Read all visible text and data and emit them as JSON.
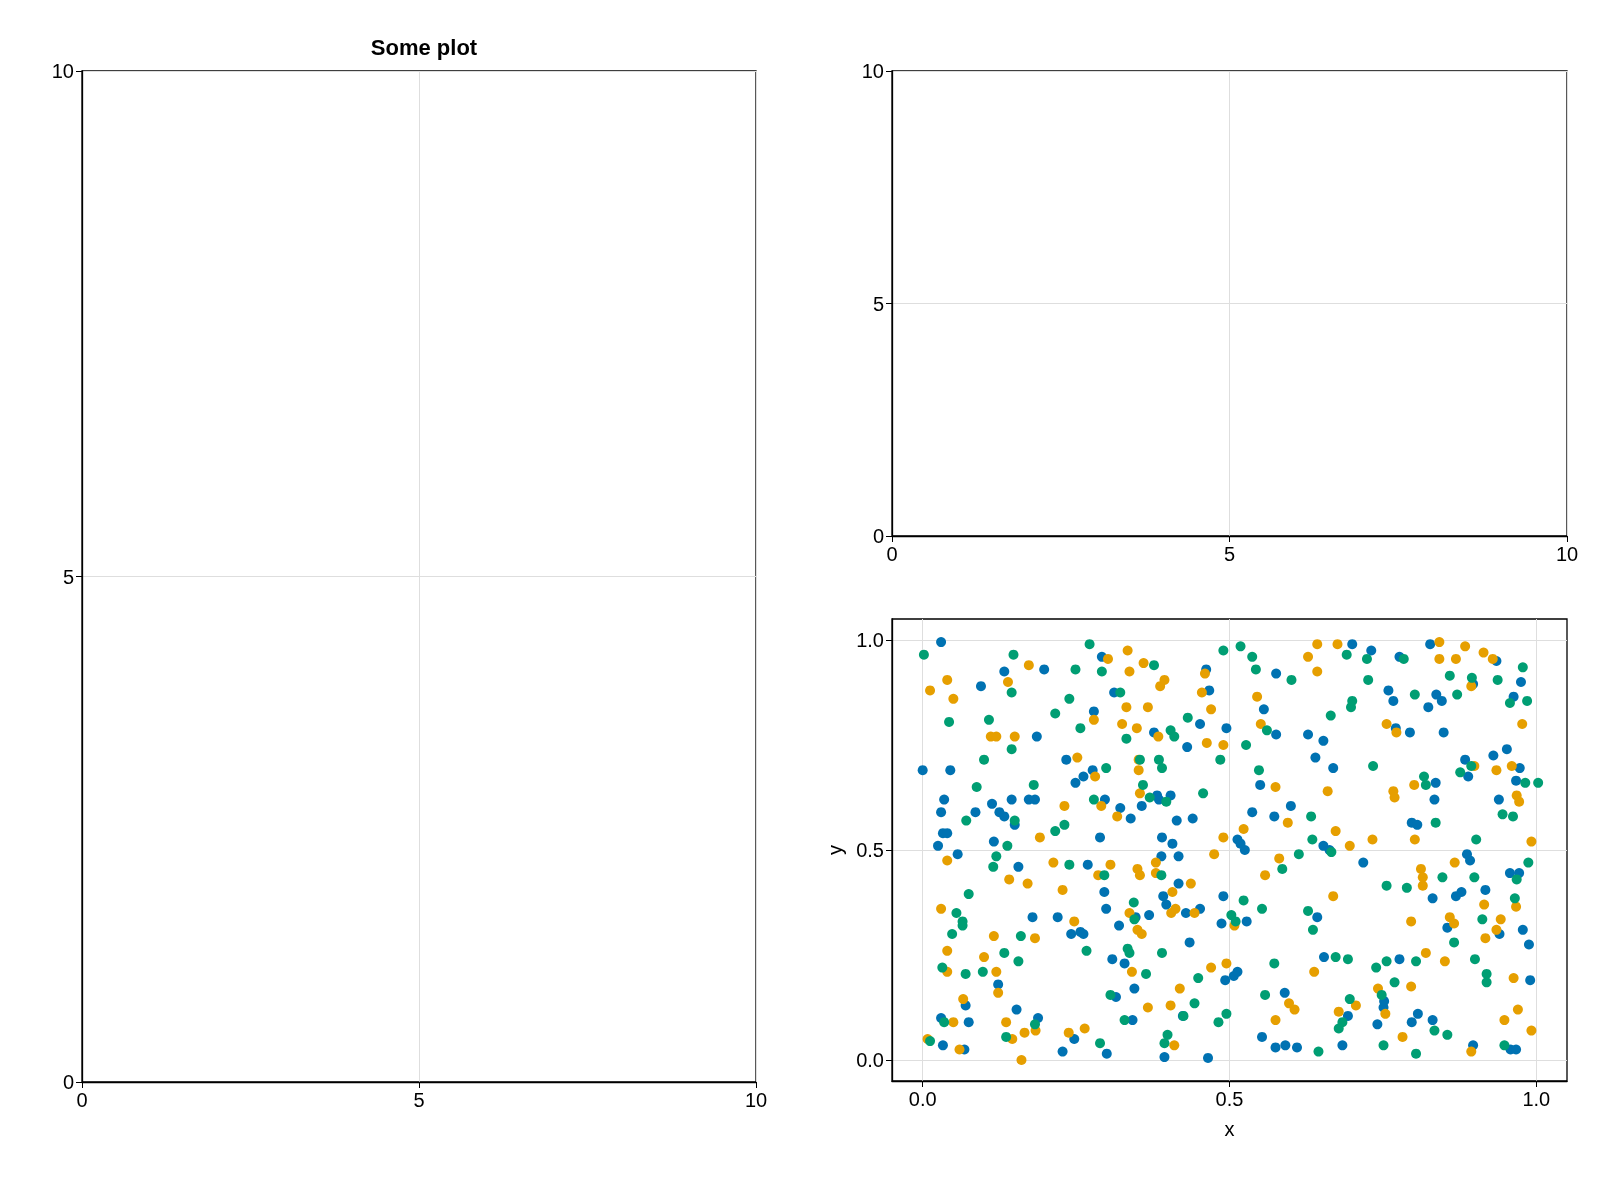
{
  "chart_data": [
    {
      "type": "scatter",
      "title": "Some plot",
      "xlim": [
        0,
        10
      ],
      "ylim": [
        0,
        10
      ],
      "xticks": [
        0,
        5,
        10
      ],
      "yticks": [
        0,
        5,
        10
      ],
      "grid": true
    },
    {
      "type": "scatter",
      "xlim": [
        0,
        10
      ],
      "ylim": [
        0,
        10
      ],
      "xticks": [
        0,
        5,
        10
      ],
      "yticks": [
        0,
        5,
        10
      ],
      "grid": true
    },
    {
      "type": "scatter",
      "xlabel": "x",
      "ylabel": "y",
      "xlim": [
        -0.05,
        1.05
      ],
      "ylim": [
        -0.05,
        1.05
      ],
      "xticks": [
        {
          "value": 0,
          "label": "0.0"
        },
        {
          "value": 0.5,
          "label": "0.5"
        },
        {
          "value": 1,
          "label": "1.0"
        }
      ],
      "yticks": [
        {
          "value": 0,
          "label": "0.0"
        },
        {
          "value": 0.5,
          "label": "0.5"
        },
        {
          "value": 1,
          "label": "1.0"
        }
      ],
      "grid": true,
      "marker": "circle",
      "series": [
        {
          "color": "#0072b2",
          "x": [
            0.0,
            0.03,
            0.025,
            0.03,
            0.035,
            0.033,
            0.04,
            0.045,
            0.057,
            0.03,
            0.033,
            0.068,
            0.07,
            0.075,
            0.086,
            0.095,
            0.113,
            0.116,
            0.125,
            0.133,
            0.133,
            0.145,
            0.15,
            0.156,
            0.153,
            0.123,
            0.173,
            0.183,
            0.186,
            0.188,
            0.179,
            0.198,
            0.22,
            0.228,
            0.234,
            0.247,
            0.242,
            0.249,
            0.257,
            0.262,
            0.262,
            0.269,
            0.277,
            0.279,
            0.289,
            0.292,
            0.296,
            0.297,
            0.299,
            0.3,
            0.309,
            0.312,
            0.315,
            0.32,
            0.322,
            0.329,
            0.339,
            0.345,
            0.342,
            0.347,
            0.357,
            0.369,
            0.377,
            0.382,
            0.385,
            0.389,
            0.39,
            0.392,
            0.394,
            0.397,
            0.404,
            0.407,
            0.414,
            0.417,
            0.417,
            0.424,
            0.429,
            0.431,
            0.435,
            0.44,
            0.452,
            0.452,
            0.462,
            0.467,
            0.465,
            0.487,
            0.49,
            0.493,
            0.495,
            0.507,
            0.513,
            0.513,
            0.518,
            0.525,
            0.528,
            0.537,
            0.55,
            0.556,
            0.553,
            0.573,
            0.576,
            0.576,
            0.575,
            0.59,
            0.591,
            0.6,
            0.61,
            0.628,
            0.64,
            0.643,
            0.653,
            0.653,
            0.654,
            0.663,
            0.669,
            0.684,
            0.693,
            0.7,
            0.718,
            0.731,
            0.741,
            0.751,
            0.752,
            0.759,
            0.767,
            0.777,
            0.771,
            0.777,
            0.794,
            0.797,
            0.797,
            0.806,
            0.807,
            0.824,
            0.827,
            0.831,
            0.831,
            0.834,
            0.836,
            0.837,
            0.846,
            0.849,
            0.855,
            0.869,
            0.878,
            0.884,
            0.887,
            0.892,
            0.889,
            0.897,
            0.897,
            0.917,
            0.93,
            0.935,
            0.939,
            0.94,
            0.952,
            0.957,
            0.958,
            0.967,
            0.963,
            0.967,
            0.972,
            0.973,
            0.975,
            0.978,
            0.988,
            0.99
          ],
          "values": [
            0.69,
            0.995,
            0.51,
            0.59,
            0.62,
            0.54,
            0.54,
            0.69,
            0.49,
            0.1,
            0.035,
            0.025,
            0.13,
            0.09,
            0.59,
            0.89,
            0.61,
            0.52,
            0.59,
            0.925,
            0.58,
            0.62,
            0.56,
            0.46,
            0.12,
            0.18,
            0.62,
            0.62,
            0.77,
            0.1,
            0.34,
            0.93,
            0.34,
            0.02,
            0.715,
            0.05,
            0.3,
            0.66,
            0.305,
            0.3,
            0.675,
            0.465,
            0.69,
            0.83,
            0.53,
            0.96,
            0.4,
            0.62,
            0.36,
            0.015,
            0.24,
            0.875,
            0.15,
            0.32,
            0.6,
            0.23,
            0.575,
            0.17,
            0.095,
            0.34,
            0.605,
            0.345,
            0.78,
            0.63,
            0.62,
            0.485,
            0.53,
            0.39,
            0.007,
            0.37,
            0.63,
            0.515,
            0.57,
            0.42,
            0.485,
            0.105,
            0.35,
            0.745,
            0.28,
            0.575,
            0.8,
            0.36,
            0.93,
            0.88,
            0.005,
            0.325,
            0.39,
            0.19,
            0.79,
            0.2,
            0.21,
            0.525,
            0.515,
            0.5,
            0.33,
            0.59,
            0.655,
            0.835,
            0.055,
            0.58,
            0.775,
            0.92,
            0.03,
            0.16,
            0.035,
            0.605,
            0.03,
            0.775,
            0.72,
            0.34,
            0.76,
            0.51,
            0.245,
            0.5,
            0.695,
            0.035,
            0.105,
            0.99,
            0.47,
            0.975,
            0.085,
            0.125,
            0.14,
            0.88,
            0.855,
            0.96,
            0.79,
            0.24,
            0.78,
            0.09,
            0.565,
            0.56,
            0.11,
            0.84,
            0.99,
            0.095,
            0.385,
            0.62,
            0.66,
            0.87,
            0.855,
            0.78,
            0.315,
            0.39,
            0.4,
            0.715,
            0.49,
            0.475,
            0.675,
            0.895,
            0.035,
            0.405,
            0.725,
            0.95,
            0.62,
            0.3,
            0.74,
            0.445,
            0.025,
            0.025,
            0.865,
            0.665,
            0.445,
            0.695,
            0.9,
            0.31,
            0.275,
            0.19
          ]
        },
        {
          "color": "#e69f00",
          "x": [
            0.012,
            0.008,
            0.03,
            0.04,
            0.04,
            0.04,
            0.04,
            0.05,
            0.05,
            0.06,
            0.066,
            0.1,
            0.111,
            0.12,
            0.116,
            0.12,
            0.123,
            0.136,
            0.139,
            0.141,
            0.146,
            0.15,
            0.161,
            0.166,
            0.173,
            0.171,
            0.183,
            0.184,
            0.191,
            0.213,
            0.228,
            0.231,
            0.238,
            0.247,
            0.252,
            0.264,
            0.279,
            0.281,
            0.286,
            0.291,
            0.302,
            0.306,
            0.317,
            0.32,
            0.325,
            0.332,
            0.334,
            0.337,
            0.337,
            0.341,
            0.349,
            0.352,
            0.352,
            0.354,
            0.35,
            0.354,
            0.35,
            0.357,
            0.36,
            0.367,
            0.367,
            0.38,
            0.38,
            0.384,
            0.387,
            0.394,
            0.404,
            0.405,
            0.407,
            0.41,
            0.412,
            0.419,
            0.437,
            0.443,
            0.455,
            0.46,
            0.463,
            0.47,
            0.47,
            0.475,
            0.49,
            0.49,
            0.495,
            0.508,
            0.523,
            0.545,
            0.551,
            0.558,
            0.575,
            0.575,
            0.581,
            0.597,
            0.606,
            0.595,
            0.628,
            0.643,
            0.643,
            0.638,
            0.66,
            0.669,
            0.673,
            0.676,
            0.678,
            0.696,
            0.706,
            0.733,
            0.742,
            0.754,
            0.756,
            0.767,
            0.769,
            0.772,
            0.782,
            0.796,
            0.796,
            0.801,
            0.802,
            0.812,
            0.815,
            0.815,
            0.82,
            0.842,
            0.842,
            0.851,
            0.859,
            0.866,
            0.867,
            0.869,
            0.884,
            0.894,
            0.894,
            0.899,
            0.914,
            0.917,
            0.915,
            0.929,
            0.935,
            0.935,
            0.942,
            0.948,
            0.96,
            0.963,
            0.967,
            0.97,
            0.968,
            0.972,
            0.977,
            0.992,
            0.992
          ],
          "values": [
            0.88,
            0.05,
            0.36,
            0.905,
            0.475,
            0.26,
            0.21,
            0.86,
            0.09,
            0.025,
            0.145,
            0.245,
            0.77,
            0.77,
            0.295,
            0.21,
            0.16,
            0.09,
            0.9,
            0.43,
            0.05,
            0.77,
            0.0,
            0.065,
            0.94,
            0.42,
            0.29,
            0.07,
            0.53,
            0.47,
            0.405,
            0.605,
            0.065,
            0.33,
            0.72,
            0.075,
            0.81,
            0.675,
            0.44,
            0.605,
            0.955,
            0.465,
            0.58,
            null,
            0.8,
            0.84,
            0.975,
            0.925,
            0.35,
            0.21,
            0.79,
            0.715,
            0.69,
            0.635,
            0.455,
            0.44,
            0.31,
            0.3,
            0.945,
            0.125,
            0.84,
            0.47,
            0.445,
            0.77,
            0.89,
            0.905,
            0.13,
            0.35,
            0.4,
            0.035,
            0.36,
            0.17,
            0.42,
            0.35,
            0.875,
            0.92,
            0.755,
            0.835,
            0.22,
            0.49,
            0.53,
            0.75,
            0.23,
            0.32,
            0.55,
            0.865,
            0.8,
            0.44,
            0.65,
            0.095,
            0.48,
            0.135,
            0.12,
            0.565,
            0.96,
            0.99,
            0.925,
            0.21,
            0.64,
            0.39,
            0.545,
            0.99,
            0.115,
            0.51,
            0.13,
            0.525,
            0.17,
            0.11,
            0.8,
            0.64,
            0.625,
            0.78,
            0.055,
            0.33,
            0.175,
            0.655,
            0.525,
            0.455,
            0.435,
            0.415,
            0.255,
            0.995,
            0.955,
            0.235,
            0.34,
            0.325,
            0.47,
            0.955,
            0.985,
            0.02,
            0.89,
            0.7,
            0.97,
            0.29,
            0.37,
            0.955,
            0.31,
            0.69,
            0.335,
            0.095,
            0.7,
            0.195,
            0.365,
            0.12,
            0.63,
            0.615,
            0.8,
            0.52,
            0.07
          ]
        },
        {
          "color": "#009e73",
          "x": [
            0.002,
            0.012,
            0.032,
            0.035,
            0.043,
            0.048,
            0.055,
            0.065,
            0.065,
            0.07,
            0.075,
            0.071,
            0.088,
            0.098,
            0.1,
            0.108,
            0.115,
            0.12,
            0.133,
            0.136,
            0.138,
            0.145,
            0.145,
            0.148,
            0.15,
            0.156,
            0.16,
            0.181,
            0.183,
            0.216,
            0.216,
            0.231,
            0.239,
            0.239,
            0.249,
            0.257,
            0.267,
            0.272,
            0.279,
            0.292,
            0.289,
            0.296,
            0.299,
            0.306,
            0.322,
            0.329,
            0.332,
            0.334,
            0.337,
            0.344,
            0.345,
            0.354,
            0.359,
            0.364,
            0.37,
            0.377,
            0.385,
            0.389,
            0.39,
            0.39,
            0.394,
            0.399,
            0.397,
            0.404,
            0.41,
            0.425,
            0.432,
            0.443,
            0.449,
            0.457,
            0.482,
            0.485,
            0.49,
            0.495,
            0.503,
            0.51,
            0.518,
            0.523,
            0.527,
            0.537,
            0.543,
            0.548,
            0.553,
            0.558,
            0.561,
            0.573,
            0.586,
            0.601,
            0.613,
            0.628,
            0.633,
            0.635,
            0.636,
            0.645,
            0.665,
            0.666,
            0.673,
            0.678,
            0.684,
            0.691,
            0.693,
            0.698,
            0.7,
            0.696,
            0.724,
            0.726,
            0.734,
            0.739,
            0.748,
            0.751,
            0.756,
            0.756,
            0.769,
            0.784,
            0.789,
            0.802,
            0.804,
            0.804,
            0.817,
            0.82,
            0.836,
            0.834,
            0.847,
            0.855,
            0.859,
            0.866,
            0.871,
            0.876,
            0.894,
            0.895,
            0.899,
            0.9,
            0.902,
            0.912,
            0.919,
            0.919,
            0.937,
            0.945,
            0.948,
            0.957,
            0.962,
            0.965,
            0.968,
            0.978,
            0.982,
            0.985,
            0.987,
            1.003
          ],
          "values": [
            0.965,
            0.045,
            0.22,
            0.09,
            0.805,
            0.3,
            0.35,
            0.33,
            0.32,
            0.205,
            0.395,
            0.57,
            0.65,
            0.21,
            0.715,
            0.81,
            0.46,
            0.485,
            0.255,
            0.055,
            0.51,
            0.875,
            0.74,
            0.965,
            0.57,
            0.235,
            0.295,
            0.655,
            0.085,
            0.825,
            0.545,
            0.56,
            0.86,
            0.465,
            0.93,
            0.79,
            0.26,
            0.99,
            0.62,
            0.925,
            0.04,
            0.44,
            0.695,
            0.155,
            0.875,
            0.095,
            0.765,
            0.265,
            0.255,
            0.375,
            0.335,
            0.715,
            0.655,
            0.205,
            0.625,
            0.94,
            0.715,
            0.44,
            0.255,
            0.695,
            0.04,
            0.06,
            0.615,
            0.785,
            0.77,
            0.105,
            0.815,
            0.135,
            0.195,
            0.635,
            0.09,
            0.715,
            0.975,
            0.11,
            0.345,
            0.33,
            0.985,
            0.38,
            0.75,
            0.96,
            0.93,
            0.69,
            0.36,
            0.155,
            0.785,
            0.23,
            0.455,
            0.905,
            0.49,
            0.355,
            0.58,
            0.525,
            0.31,
            0.02,
            0.82,
            0.495,
            0.245,
            0.075,
            0.09,
            0.965,
            0.24,
            0.84,
            0.855,
            0.145,
            0.955,
            0.905,
            0.7,
            0.22,
            0.155,
            0.035,
            0.235,
            0.415,
            0.185,
            0.955,
            0.41,
            0.87,
            0.235,
            0.015,
            0.675,
            0.655,
            0.565,
            0.07,
            0.435,
            0.06,
            0.915,
            0.28,
            0.87,
            0.685,
            0.7,
            0.91,
            0.435,
            0.24,
            0.525,
            0.335,
            0.205,
            0.185,
            0.905,
            0.585,
            0.035,
            0.85,
            0.58,
            0.385,
            0.43,
            0.935,
            0.66,
            0.855,
            0.47,
            0.66
          ]
        }
      ]
    }
  ]
}
